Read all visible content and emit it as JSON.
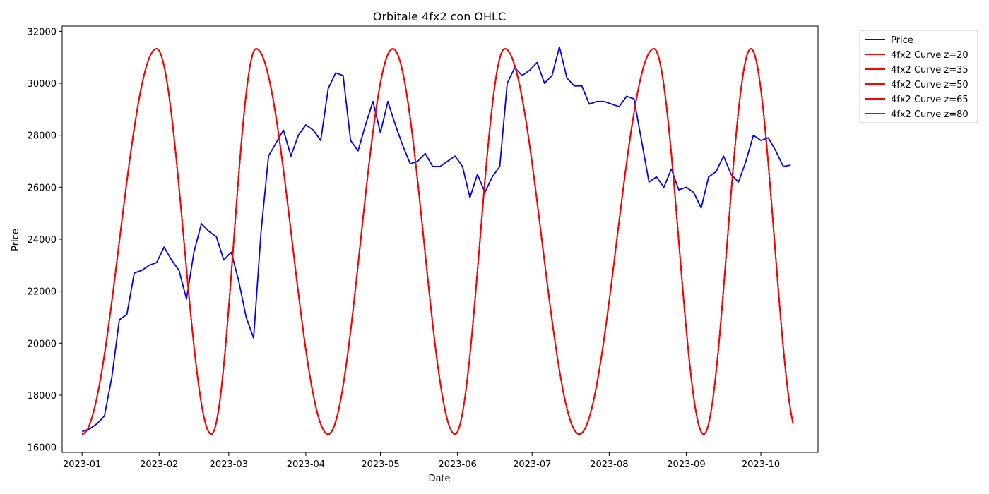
{
  "chart_data": {
    "type": "line",
    "title": "Orbitale 4fx2 con OHLC",
    "xlabel": "Date",
    "ylabel": "Price",
    "xlim": [
      "2022-12-24",
      "2023-10-24"
    ],
    "ylim": [
      15800,
      32200
    ],
    "x_ticks": [
      "2023-01-01",
      "2023-02-01",
      "2023-03-01",
      "2023-04-01",
      "2023-05-01",
      "2023-06-01",
      "2023-07-01",
      "2023-08-01",
      "2023-09-01",
      "2023-10-01"
    ],
    "x_tick_labels": [
      "2023-01",
      "2023-02",
      "2023-03",
      "2023-04",
      "2023-05",
      "2023-06",
      "2023-07",
      "2023-08",
      "2023-09",
      "2023-10"
    ],
    "y_ticks": [
      16000,
      18000,
      20000,
      22000,
      24000,
      26000,
      28000,
      30000,
      32000
    ],
    "y_tick_labels": [
      "16000",
      "18000",
      "20000",
      "22000",
      "24000",
      "26000",
      "28000",
      "30000",
      "32000"
    ],
    "grid": false,
    "legend_position": "outside-top-right",
    "series": [
      {
        "name": "Price",
        "color": "#0000ff",
        "x": [
          "2023-01-01",
          "2023-01-04",
          "2023-01-07",
          "2023-01-10",
          "2023-01-13",
          "2023-01-16",
          "2023-01-19",
          "2023-01-22",
          "2023-01-25",
          "2023-01-28",
          "2023-01-31",
          "2023-02-03",
          "2023-02-06",
          "2023-02-09",
          "2023-02-12",
          "2023-02-15",
          "2023-02-18",
          "2023-02-21",
          "2023-02-24",
          "2023-02-27",
          "2023-03-02",
          "2023-03-05",
          "2023-03-08",
          "2023-03-11",
          "2023-03-14",
          "2023-03-17",
          "2023-03-20",
          "2023-03-23",
          "2023-03-26",
          "2023-03-29",
          "2023-04-01",
          "2023-04-04",
          "2023-04-07",
          "2023-04-10",
          "2023-04-13",
          "2023-04-16",
          "2023-04-19",
          "2023-04-22",
          "2023-04-25",
          "2023-04-28",
          "2023-05-01",
          "2023-05-04",
          "2023-05-07",
          "2023-05-10",
          "2023-05-13",
          "2023-05-16",
          "2023-05-19",
          "2023-05-22",
          "2023-05-25",
          "2023-05-28",
          "2023-05-31",
          "2023-06-03",
          "2023-06-06",
          "2023-06-09",
          "2023-06-12",
          "2023-06-15",
          "2023-06-18",
          "2023-06-21",
          "2023-06-24",
          "2023-06-27",
          "2023-06-30",
          "2023-07-03",
          "2023-07-06",
          "2023-07-09",
          "2023-07-12",
          "2023-07-15",
          "2023-07-18",
          "2023-07-21",
          "2023-07-24",
          "2023-07-27",
          "2023-07-30",
          "2023-08-02",
          "2023-08-05",
          "2023-08-08",
          "2023-08-11",
          "2023-08-14",
          "2023-08-17",
          "2023-08-20",
          "2023-08-23",
          "2023-08-26",
          "2023-08-29",
          "2023-09-01",
          "2023-09-04",
          "2023-09-07",
          "2023-09-10",
          "2023-09-13",
          "2023-09-16",
          "2023-09-19",
          "2023-09-22",
          "2023-09-25",
          "2023-09-28",
          "2023-10-01",
          "2023-10-04",
          "2023-10-07",
          "2023-10-10",
          "2023-10-13"
        ],
        "values": [
          16600,
          16700,
          16900,
          17200,
          18700,
          20900,
          21100,
          22700,
          22800,
          23000,
          23100,
          23700,
          23200,
          22800,
          21700,
          23500,
          24600,
          24300,
          24100,
          23200,
          23500,
          22400,
          21000,
          20200,
          24300,
          27200,
          27700,
          28200,
          27200,
          28000,
          28400,
          28200,
          27800,
          29800,
          30400,
          30300,
          27800,
          27400,
          28400,
          29300,
          28100,
          29300,
          28400,
          27600,
          26900,
          27000,
          27300,
          26800,
          26800,
          27000,
          27200,
          26800,
          25600,
          26500,
          25800,
          26400,
          26800,
          30000,
          30600,
          30300,
          30500,
          30800,
          30000,
          30300,
          31400,
          30200,
          29900,
          29900,
          29200,
          29300,
          29300,
          29200,
          29100,
          29500,
          29400,
          27800,
          26200,
          26400,
          26000,
          26700,
          25900,
          26000,
          25800,
          25200,
          26400,
          26600,
          27200,
          26500,
          26200,
          27000,
          28000,
          27800,
          27900,
          27400,
          26800,
          26850
        ]
      },
      {
        "name": "4fx2 Curve z=20",
        "color": "#ff0000",
        "curve": "orbital",
        "min": 16500,
        "max": 31330,
        "peaks": [
          "2023-01-31",
          "2023-03-12",
          "2023-05-06",
          "2023-06-20",
          "2023-08-19",
          "2023-09-27"
        ],
        "troughs": [
          "2023-01-01",
          "2023-02-22",
          "2023-04-10",
          "2023-05-31",
          "2023-07-20",
          "2023-09-08"
        ],
        "end": "2023-10-14"
      },
      {
        "name": "4fx2 Curve z=35",
        "color": "#ff0000",
        "curve": "orbital",
        "min": 16500,
        "max": 31330,
        "peaks": [
          "2023-01-31",
          "2023-03-12",
          "2023-05-06",
          "2023-06-20",
          "2023-08-19",
          "2023-09-27"
        ],
        "troughs": [
          "2023-01-01",
          "2023-02-22",
          "2023-04-10",
          "2023-05-31",
          "2023-07-20",
          "2023-09-08"
        ],
        "end": "2023-10-14"
      },
      {
        "name": "4fx2 Curve z=50",
        "color": "#ff0000",
        "curve": "orbital",
        "min": 16500,
        "max": 31330,
        "peaks": [
          "2023-01-31",
          "2023-03-12",
          "2023-05-06",
          "2023-06-20",
          "2023-08-19",
          "2023-09-27"
        ],
        "troughs": [
          "2023-01-01",
          "2023-02-22",
          "2023-04-10",
          "2023-05-31",
          "2023-07-20",
          "2023-09-08"
        ],
        "end": "2023-10-14"
      },
      {
        "name": "4fx2 Curve z=65",
        "color": "#ff0000",
        "curve": "orbital",
        "min": 16500,
        "max": 31330,
        "peaks": [
          "2023-01-31",
          "2023-03-12",
          "2023-05-06",
          "2023-06-20",
          "2023-08-19",
          "2023-09-27"
        ],
        "troughs": [
          "2023-01-01",
          "2023-02-22",
          "2023-04-10",
          "2023-05-31",
          "2023-07-20",
          "2023-09-08"
        ],
        "end": "2023-10-14"
      },
      {
        "name": "4fx2 Curve z=80",
        "color": "#ff0000",
        "curve": "orbital",
        "min": 16500,
        "max": 31330,
        "peaks": [
          "2023-01-31",
          "2023-03-12",
          "2023-05-06",
          "2023-06-20",
          "2023-08-19",
          "2023-09-27"
        ],
        "troughs": [
          "2023-01-01",
          "2023-02-22",
          "2023-04-10",
          "2023-05-31",
          "2023-07-20",
          "2023-09-08"
        ],
        "end": "2023-10-14"
      }
    ]
  }
}
